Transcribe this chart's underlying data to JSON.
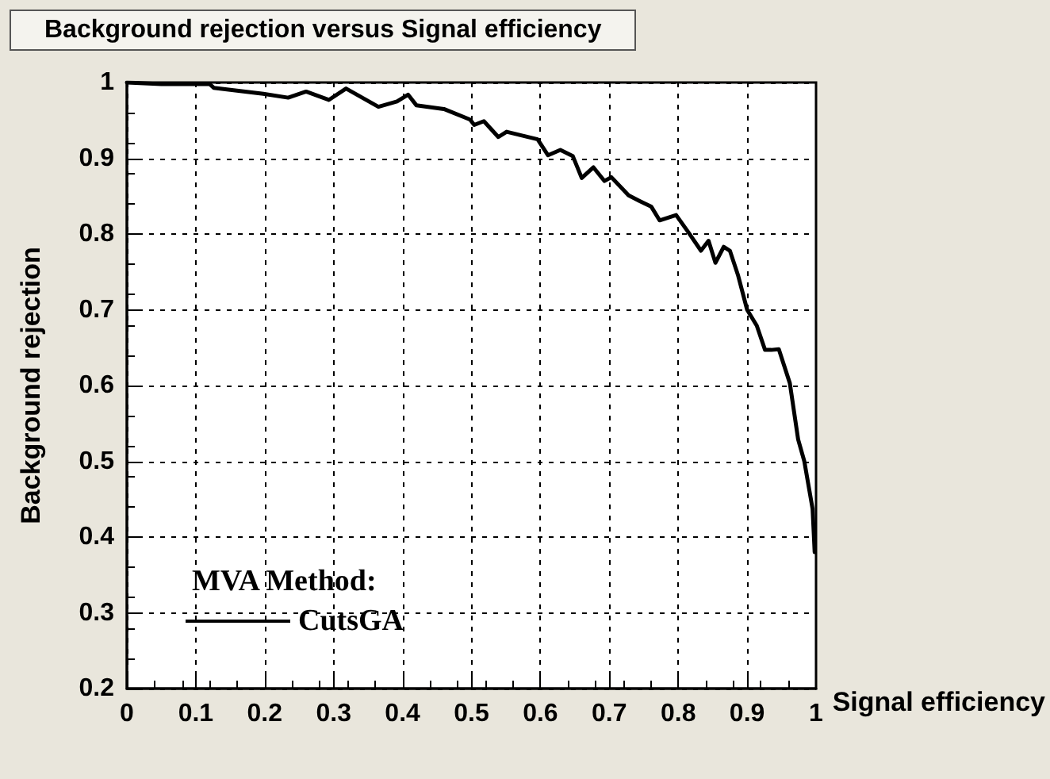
{
  "chart_data": {
    "type": "line",
    "title": "Background rejection versus Signal efficiency",
    "xlabel": "Signal efficiency",
    "ylabel": "Background rejection",
    "legend_title": "MVA Method:",
    "series": [
      {
        "name": "CutsGA",
        "color": "#000000",
        "x": [
          0,
          0.05,
          0.12,
          0.126,
          0.198,
          0.234,
          0.26,
          0.293,
          0.318,
          0.365,
          0.392,
          0.408,
          0.42,
          0.46,
          0.498,
          0.504,
          0.518,
          0.539,
          0.551,
          0.596,
          0.611,
          0.629,
          0.647,
          0.66,
          0.677,
          0.693,
          0.703,
          0.728,
          0.743,
          0.761,
          0.773,
          0.797,
          0.815,
          0.833,
          0.844,
          0.854,
          0.866,
          0.875,
          0.887,
          0.9,
          0.914,
          0.926,
          0.935,
          0.946,
          0.962,
          0.974,
          0.983,
          0.995,
          0.998
        ],
        "values": [
          1.0,
          0.998,
          0.998,
          0.993,
          0.985,
          0.98,
          0.988,
          0.977,
          0.992,
          0.968,
          0.975,
          0.984,
          0.97,
          0.965,
          0.951,
          0.944,
          0.949,
          0.928,
          0.935,
          0.925,
          0.904,
          0.911,
          0.903,
          0.874,
          0.888,
          0.87,
          0.875,
          0.851,
          0.844,
          0.836,
          0.818,
          0.825,
          0.802,
          0.778,
          0.791,
          0.762,
          0.783,
          0.778,
          0.745,
          0.7,
          0.679,
          0.647,
          0.647,
          0.648,
          0.603,
          0.529,
          0.5,
          0.437,
          0.38
        ]
      }
    ],
    "xlim": [
      0,
      1
    ],
    "ylim": [
      0.2,
      1
    ],
    "xticks": [
      0,
      0.1,
      0.2,
      0.3,
      0.4,
      0.5,
      0.6,
      0.7,
      0.8,
      0.9,
      1
    ],
    "yticks": [
      0.2,
      0.3,
      0.4,
      0.5,
      0.6,
      0.7,
      0.8,
      0.9,
      1
    ],
    "grid": true,
    "legend": "bottom left",
    "marker": "none",
    "line_style": "solid"
  }
}
